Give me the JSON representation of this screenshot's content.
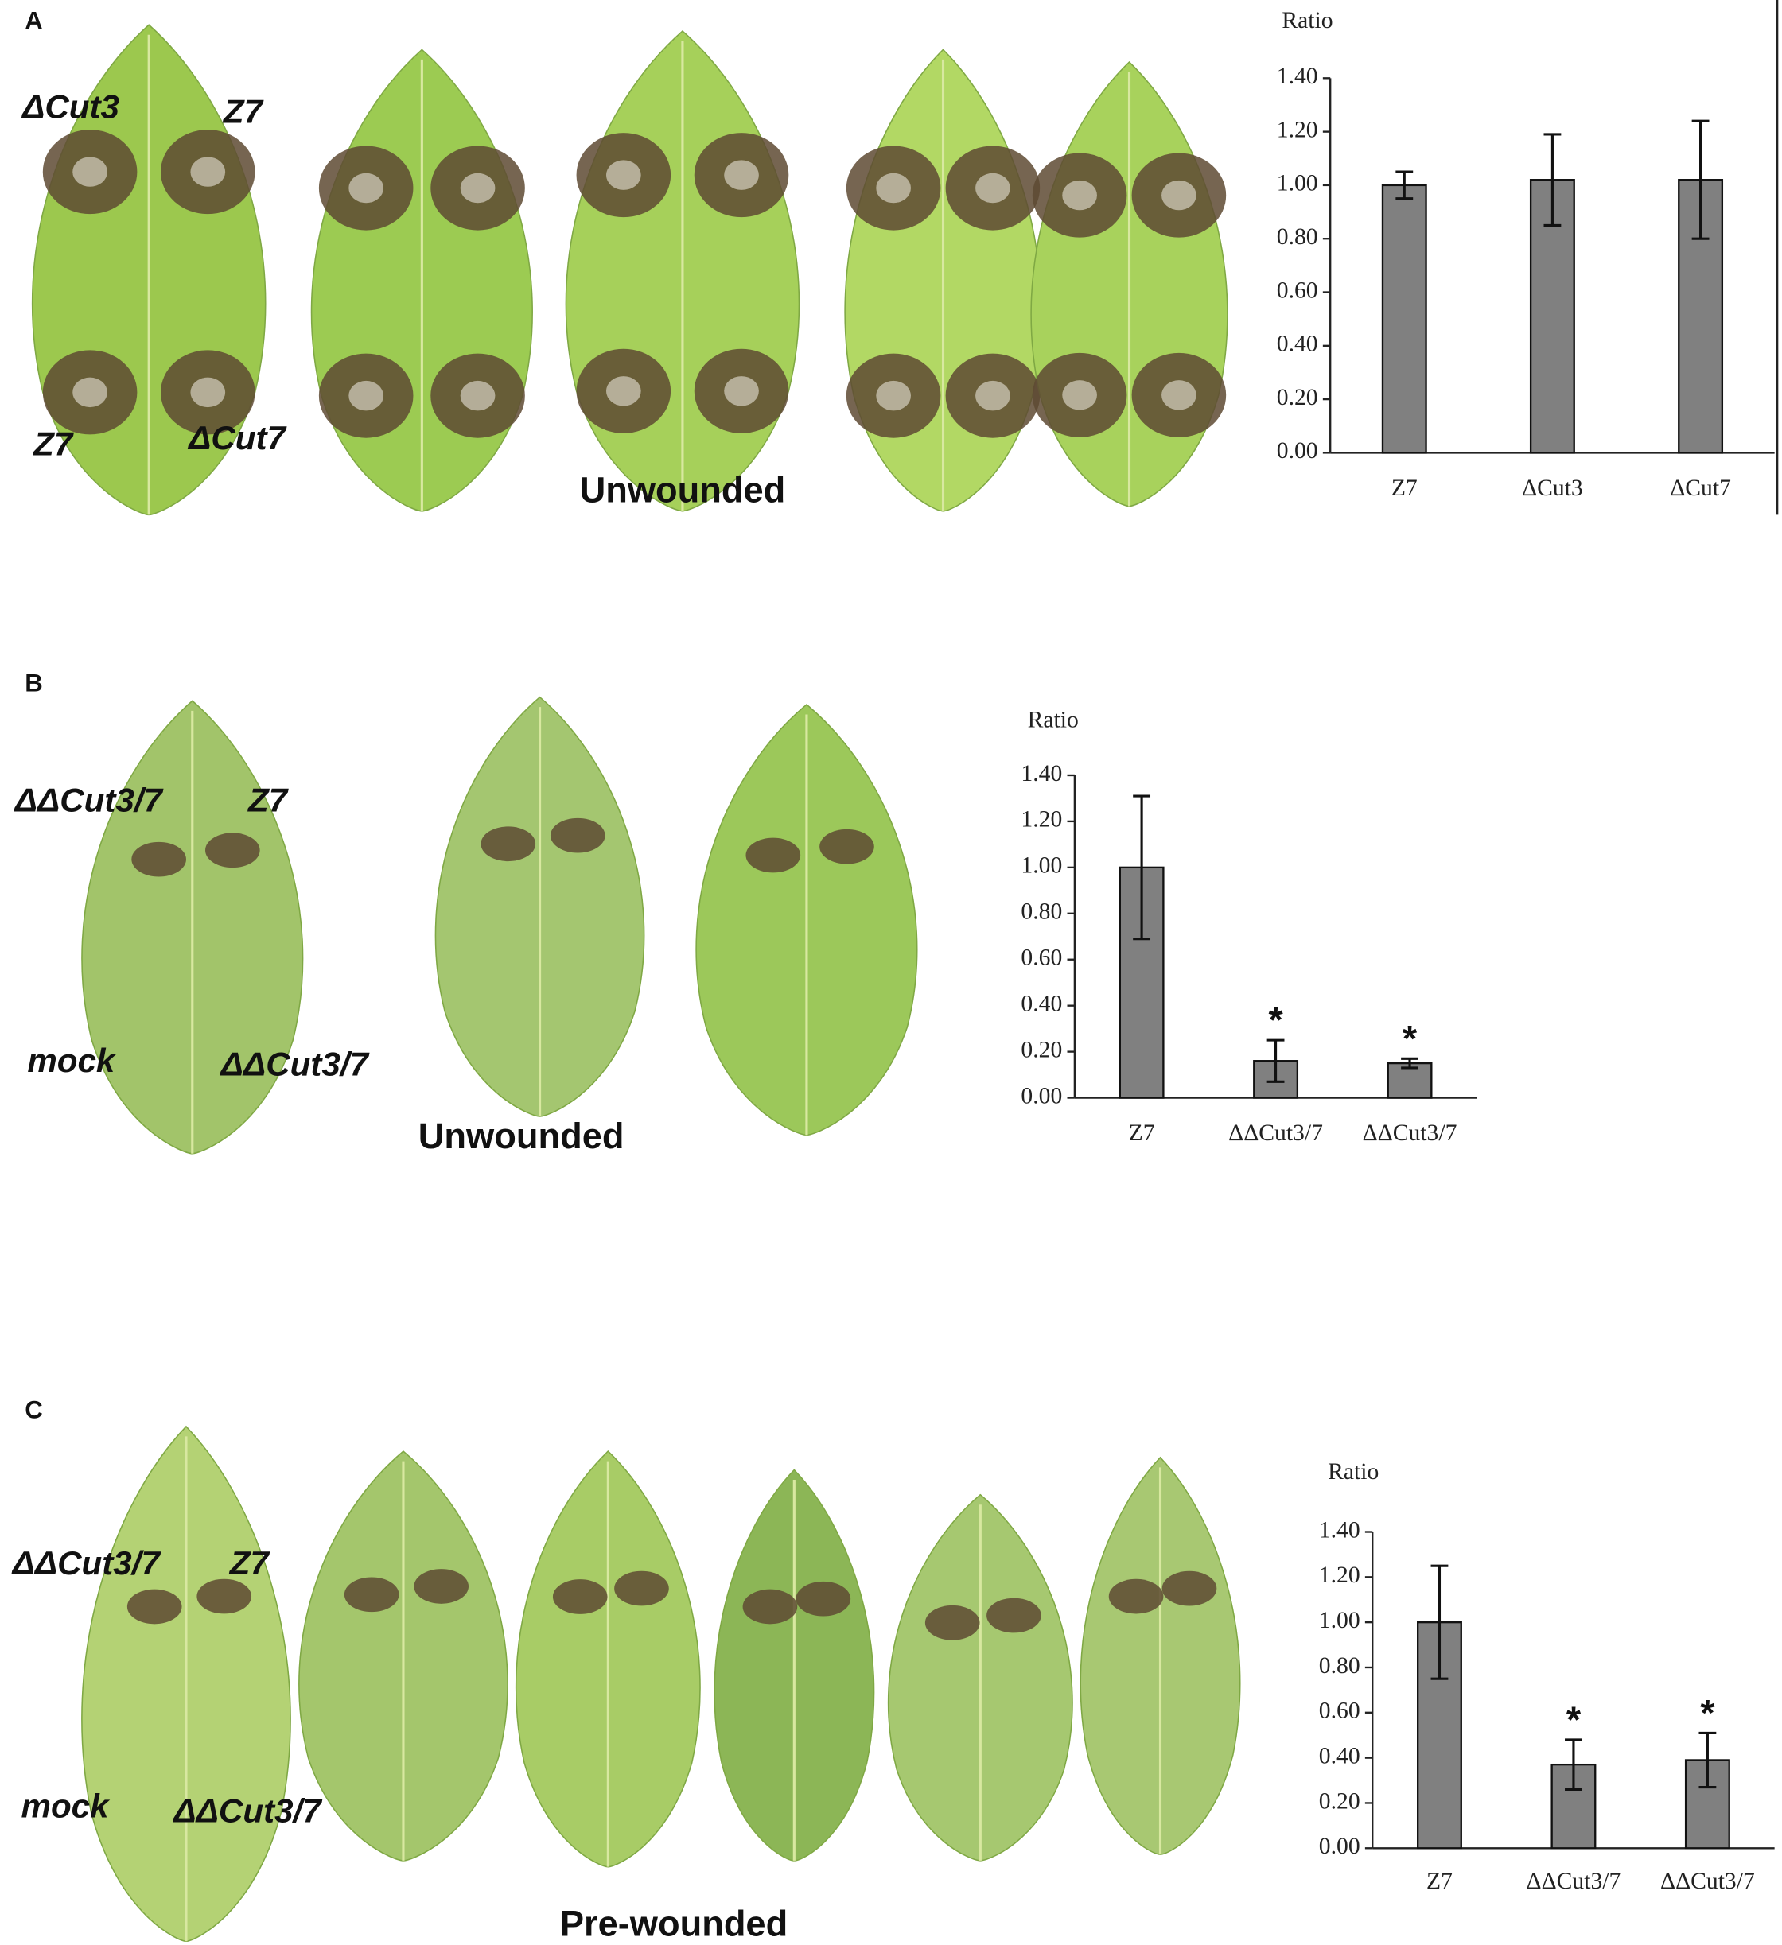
{
  "panels": [
    {
      "label": "A",
      "caption": "Unwounded",
      "leaf_labels": [
        "ΔCut3",
        "Z7",
        "Z7",
        "ΔCut7"
      ]
    },
    {
      "label": "B",
      "caption": "Unwounded",
      "leaf_labels": [
        "ΔΔCut3/7",
        "Z7",
        "mock",
        "ΔΔCut3/7"
      ]
    },
    {
      "label": "C",
      "caption": "Pre-wounded",
      "leaf_labels": [
        "ΔΔCut3/7",
        "Z7",
        "mock",
        "ΔΔCut3/7"
      ]
    }
  ],
  "chart_data": [
    {
      "type": "bar",
      "y_label": "Ratio",
      "categories": [
        "Z7",
        "ΔCut3",
        "ΔCut7"
      ],
      "values": [
        1.0,
        1.02,
        1.02
      ],
      "errors": [
        0.05,
        0.17,
        0.22
      ],
      "color": "#808080",
      "ylim": [
        0,
        1.4
      ],
      "yticks": [
        {
          "value": 0,
          "label": "0.00"
        },
        {
          "value": 0.2,
          "label": "0.20"
        },
        {
          "value": 0.4,
          "label": "0.40"
        },
        {
          "value": 0.6,
          "label": "0.60"
        },
        {
          "value": 0.8,
          "label": "0.80"
        },
        {
          "value": 1.0,
          "label": "1.00"
        },
        {
          "value": 1.2,
          "label": "1.20"
        },
        {
          "value": 1.4,
          "label": "1.40"
        }
      ]
    },
    {
      "type": "bar",
      "y_label": "Ratio",
      "categories": [
        "Z7",
        "ΔΔCut3/7",
        "ΔΔCut3/7"
      ],
      "values": [
        1.0,
        0.16,
        0.15
      ],
      "errors": [
        0.31,
        0.09,
        0.02
      ],
      "color": "#808080",
      "annotations": [
        null,
        "*",
        "*"
      ],
      "ylim": [
        0,
        1.4
      ],
      "yticks": [
        {
          "value": 0,
          "label": "0.00"
        },
        {
          "value": 0.2,
          "label": "0.20"
        },
        {
          "value": 0.4,
          "label": "0.40"
        },
        {
          "value": 0.6,
          "label": "0.60"
        },
        {
          "value": 0.8,
          "label": "0.80"
        },
        {
          "value": 1.0,
          "label": "1.00"
        },
        {
          "value": 1.2,
          "label": "1.20"
        },
        {
          "value": 1.4,
          "label": "1.40"
        }
      ]
    },
    {
      "type": "bar",
      "y_label": "Ratio",
      "categories": [
        "Z7",
        "ΔΔCut3/7",
        "ΔΔCut3/7"
      ],
      "values": [
        1.0,
        0.37,
        0.39
      ],
      "errors": [
        0.25,
        0.11,
        0.12
      ],
      "color": "#808080",
      "annotations": [
        null,
        "*",
        "*"
      ],
      "ylim": [
        0,
        1.4
      ],
      "yticks": [
        {
          "value": 0,
          "label": "0.00"
        },
        {
          "value": 0.2,
          "label": "0.20"
        },
        {
          "value": 0.4,
          "label": "0.40"
        },
        {
          "value": 0.6,
          "label": "0.60"
        },
        {
          "value": 0.8,
          "label": "0.80"
        },
        {
          "value": 1.0,
          "label": "1.00"
        },
        {
          "value": 1.2,
          "label": "1.20"
        },
        {
          "value": 1.4,
          "label": "1.40"
        }
      ]
    }
  ]
}
